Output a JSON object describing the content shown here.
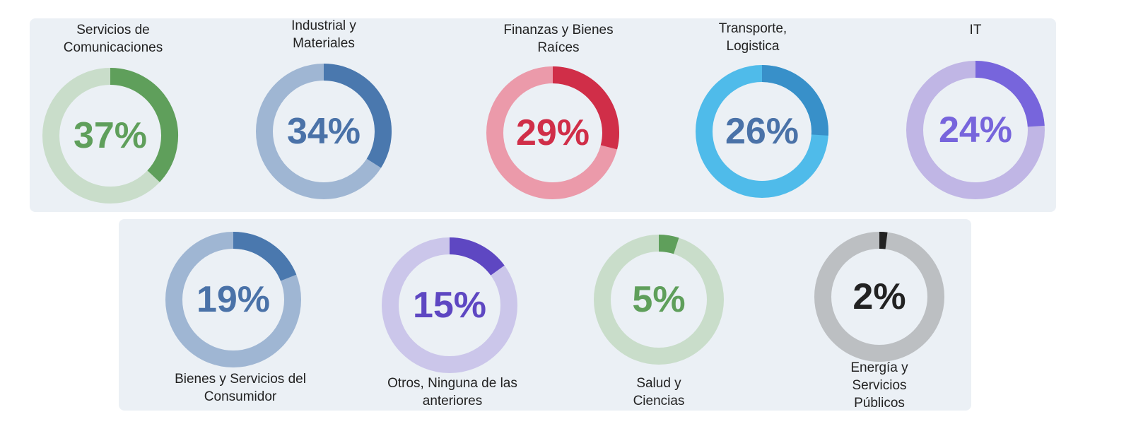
{
  "chart_data": [
    {
      "type": "donut",
      "title": "Servicios de Comunicaciones",
      "values": [
        37
      ],
      "value_labels": [
        "37%"
      ],
      "color": "#5f9f5b",
      "track_color": "#c9ddca",
      "label_color": "#5f9f5b"
    },
    {
      "type": "donut",
      "title": "Industrial y Materiales",
      "values": [
        34
      ],
      "value_labels": [
        "34%"
      ],
      "color": "#4a78ae",
      "track_color": "#9fb6d3",
      "label_color": "#4a72a8"
    },
    {
      "type": "donut",
      "title": "Finanzas y Bienes Raíces",
      "values": [
        29
      ],
      "value_labels": [
        "29%"
      ],
      "color": "#d02e48",
      "track_color": "#eb9aaa",
      "label_color": "#d02e48"
    },
    {
      "type": "donut",
      "title": "Transporte, Logistica",
      "values": [
        26
      ],
      "value_labels": [
        "26%"
      ],
      "color": "#3890c9",
      "track_color": "#4fbbea",
      "label_color": "#4a72a8"
    },
    {
      "type": "donut",
      "title": "IT",
      "values": [
        24
      ],
      "value_labels": [
        "24%"
      ],
      "color": "#7765dc",
      "track_color": "#c0b6e5",
      "label_color": "#7765dc"
    },
    {
      "type": "donut",
      "title": "Bienes y Servicios del Consumidor",
      "values": [
        19
      ],
      "value_labels": [
        "19%"
      ],
      "color": "#4a78ae",
      "track_color": "#9fb6d3",
      "label_color": "#4a72a8"
    },
    {
      "type": "donut",
      "title": "Otros, Ninguna de las anteriores",
      "values": [
        15
      ],
      "value_labels": [
        "15%"
      ],
      "color": "#5e47c2",
      "track_color": "#cbc6ea",
      "label_color": "#5e47c2"
    },
    {
      "type": "donut",
      "title": "Salud y Ciencias",
      "values": [
        5
      ],
      "value_labels": [
        "5%"
      ],
      "color": "#5f9f5b",
      "track_color": "#c9ddca",
      "label_color": "#5f9f5b"
    },
    {
      "type": "donut",
      "title": "Energía y Servicios Públicos",
      "values": [
        2
      ],
      "value_labels": [
        "2%"
      ],
      "color": "#222222",
      "track_color": "#bcbfc2",
      "label_color": "#222222"
    }
  ]
}
